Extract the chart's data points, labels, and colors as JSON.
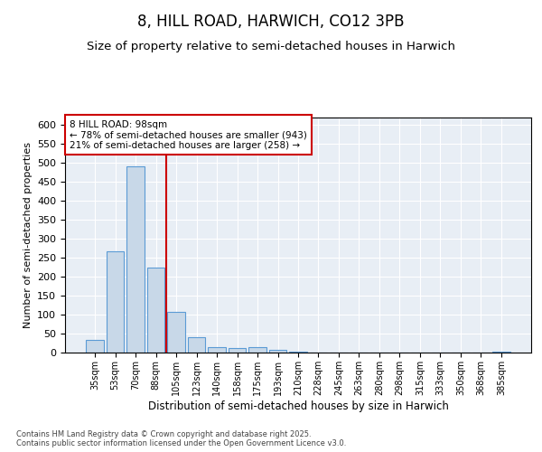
{
  "title1": "8, HILL ROAD, HARWICH, CO12 3PB",
  "title2": "Size of property relative to semi-detached houses in Harwich",
  "xlabel": "Distribution of semi-detached houses by size in Harwich",
  "ylabel": "Number of semi-detached properties",
  "categories": [
    "35sqm",
    "53sqm",
    "70sqm",
    "88sqm",
    "105sqm",
    "123sqm",
    "140sqm",
    "158sqm",
    "175sqm",
    "193sqm",
    "210sqm",
    "228sqm",
    "245sqm",
    "263sqm",
    "280sqm",
    "298sqm",
    "315sqm",
    "333sqm",
    "350sqm",
    "368sqm",
    "385sqm"
  ],
  "values": [
    33,
    267,
    492,
    225,
    108,
    40,
    15,
    13,
    14,
    8,
    2,
    1,
    0,
    0,
    0,
    0,
    0,
    0,
    0,
    1,
    2
  ],
  "bar_color": "#c8d8e8",
  "bar_edge_color": "#5b9bd5",
  "red_line_x": 3.5,
  "annotation_text": "8 HILL ROAD: 98sqm\n← 78% of semi-detached houses are smaller (943)\n21% of semi-detached houses are larger (258) →",
  "annotation_box_color": "#ffffff",
  "annotation_box_edge_color": "#cc0000",
  "footnote": "Contains HM Land Registry data © Crown copyright and database right 2025.\nContains public sector information licensed under the Open Government Licence v3.0.",
  "ylim": [
    0,
    620
  ],
  "yticks": [
    0,
    50,
    100,
    150,
    200,
    250,
    300,
    350,
    400,
    450,
    500,
    550,
    600
  ],
  "plot_background": "#e8eef5",
  "title1_fontsize": 12,
  "title2_fontsize": 9.5
}
